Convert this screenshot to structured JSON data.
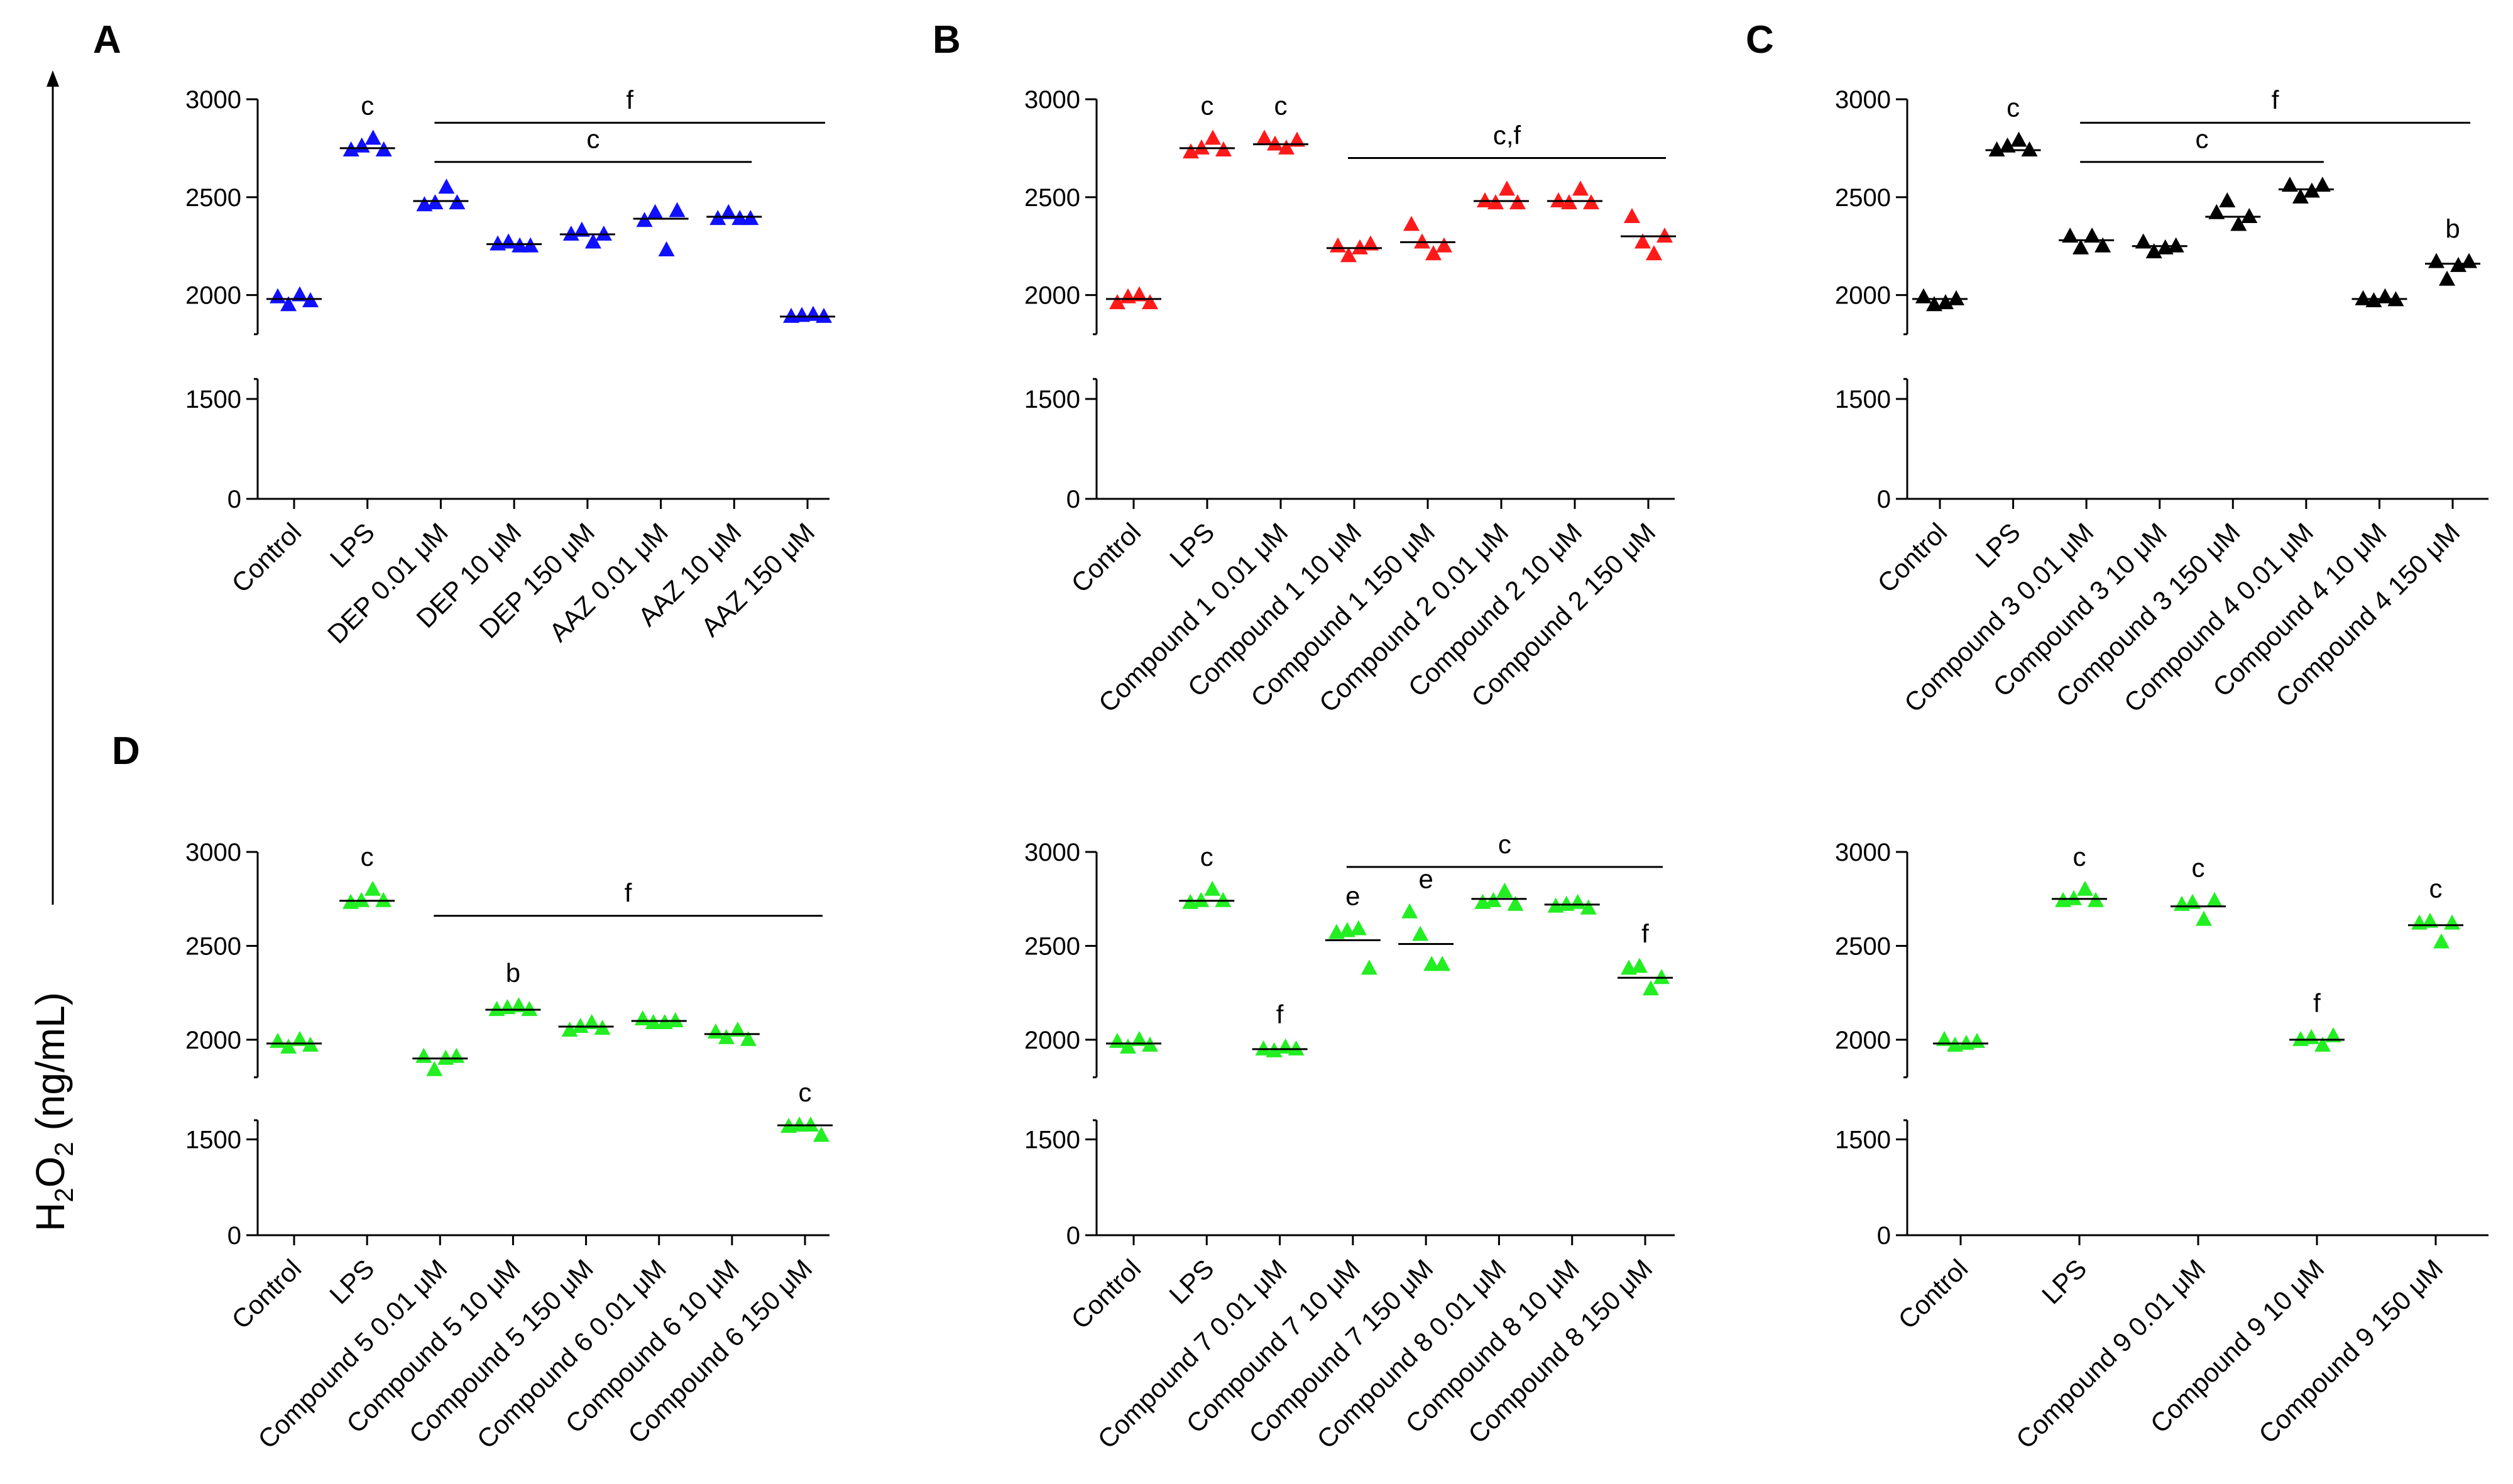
{
  "y_axis_label": {
    "main": "H",
    "sub": "2",
    "mid": "O",
    "sub2": "2",
    "rest": " (ng/mL)"
  },
  "chart_data": [
    {
      "panel": "A",
      "type": "scatter",
      "color": "#1010ff",
      "categories": [
        "Control",
        "LPS",
        "DEP 0.01 μM",
        "DEP 10 μM",
        "DEP 150 μM",
        "AAZ 0.01 μM",
        "AAZ 10 μM",
        "AAZ 150 μM"
      ],
      "yticks": [
        "3000",
        "2500",
        "2000",
        "1500",
        "0"
      ],
      "ylabel": "H2O2 (ng/mL)",
      "points": [
        [
          1990,
          1950,
          2000,
          1970
        ],
        [
          2740,
          2760,
          2800,
          2740
        ],
        [
          2460,
          2470,
          2550,
          2470
        ],
        [
          2260,
          2270,
          2250,
          2250
        ],
        [
          2310,
          2330,
          2270,
          2310
        ],
        [
          2380,
          2420,
          2230,
          2430
        ],
        [
          2390,
          2420,
          2390,
          2390
        ],
        [
          1890,
          1895,
          1900,
          1890
        ]
      ],
      "means": [
        1980,
        2750,
        2480,
        2260,
        2310,
        2390,
        2400,
        1890
      ],
      "annotations": [
        {
          "text": "c",
          "cat": 1
        }
      ],
      "brackets": [
        {
          "text": "f",
          "from": 2,
          "to": 7,
          "level": 2880
        },
        {
          "text": "c",
          "from": 2,
          "to": 6,
          "level": 2680
        }
      ]
    },
    {
      "panel": "B",
      "type": "scatter",
      "color": "#ff1a1a",
      "categories": [
        "Control",
        "LPS",
        "Compound 1 0.01 μM",
        "Compound 1 10 μM",
        "Compound 1 150 μM",
        "Compound 2 0.01 μM",
        "Compound 2 10 μM",
        "Compound 2 150 μM"
      ],
      "yticks": [
        "3000",
        "2500",
        "2000",
        "1500",
        "0"
      ],
      "ylabel": "H2O2 (ng/mL)",
      "points": [
        [
          1960,
          1990,
          2000,
          1960
        ],
        [
          2730,
          2750,
          2800,
          2740
        ],
        [
          2800,
          2770,
          2750,
          2790
        ],
        [
          2250,
          2200,
          2240,
          2260
        ],
        [
          2360,
          2270,
          2210,
          2250
        ],
        [
          2480,
          2470,
          2540,
          2470
        ],
        [
          2480,
          2470,
          2540,
          2470
        ],
        [
          2400,
          2270,
          2210,
          2300
        ]
      ],
      "means": [
        1980,
        2750,
        2770,
        2240,
        2270,
        2480,
        2480,
        2300
      ],
      "annotations": [
        {
          "text": "c",
          "cat": 1
        },
        {
          "text": "c",
          "cat": 2
        }
      ],
      "brackets": [
        {
          "text": "c,f",
          "from": 3,
          "to": 7,
          "level": 2700
        }
      ]
    },
    {
      "panel": "C",
      "type": "scatter",
      "color": "#000000",
      "categories": [
        "Control",
        "LPS",
        "Compound 3 0.01 μM",
        "Compound 3 10 μM",
        "Compound 3 150 μM",
        "Compound 4 0.01 μM",
        "Compound 4 10 μM",
        "Compound 4 150 μM"
      ],
      "yticks": [
        "3000",
        "2500",
        "2000",
        "1500",
        "0"
      ],
      "ylabel": "H2O2 (ng/mL)",
      "points": [
        [
          1990,
          1950,
          1960,
          1980
        ],
        [
          2740,
          2760,
          2790,
          2740
        ],
        [
          2300,
          2240,
          2300,
          2250
        ],
        [
          2270,
          2220,
          2240,
          2250
        ],
        [
          2420,
          2480,
          2360,
          2400
        ],
        [
          2560,
          2500,
          2530,
          2560
        ],
        [
          1980,
          1970,
          1990,
          1975
        ],
        [
          2170,
          2080,
          2150,
          2170
        ]
      ],
      "means": [
        1980,
        2740,
        2280,
        2250,
        2400,
        2540,
        1980,
        2160
      ],
      "annotations": [
        {
          "text": "c",
          "cat": 1
        },
        {
          "text": "b",
          "cat": 7
        }
      ],
      "brackets": [
        {
          "text": "f",
          "from": 2,
          "to": 7,
          "level": 2880
        },
        {
          "text": "c",
          "from": 2,
          "to": 5,
          "level": 2680
        }
      ]
    },
    {
      "panel": "D",
      "type": "scatter",
      "color": "#22ee22",
      "categories": [
        "Control",
        "LPS",
        "Compound 5 0.01 μM",
        "Compound 5 10 μM",
        "Compound 5 150 μM",
        "Compound 6 0.01 μM",
        "Compound 6 10 μM",
        "Compound 6 150 μM"
      ],
      "yticks": [
        "3000",
        "2500",
        "2000",
        "1500",
        "0"
      ],
      "ylabel": "H2O2 (ng/mL)",
      "points": [
        [
          1990,
          1960,
          2000,
          1970
        ],
        [
          2730,
          2740,
          2800,
          2740
        ],
        [
          1910,
          1840,
          1900,
          1910
        ],
        [
          2160,
          2170,
          2180,
          2160
        ],
        [
          2050,
          2070,
          2090,
          2060
        ],
        [
          2110,
          2090,
          2090,
          2100
        ],
        [
          2040,
          2010,
          2050,
          2000
        ],
        [
          1700,
          1720,
          1720,
          1560
        ]
      ],
      "means": [
        1980,
        2740,
        1900,
        2160,
        2070,
        2100,
        2030,
        1720
      ],
      "annotations": [
        {
          "text": "c",
          "cat": 1
        },
        {
          "text": "b",
          "cat": 3
        },
        {
          "text": "c",
          "cat": 7
        }
      ],
      "brackets": [
        {
          "text": "f",
          "from": 2,
          "to": 7,
          "level": 2660
        }
      ]
    },
    {
      "panel": "",
      "type": "scatter",
      "color": "#22ee22",
      "categories": [
        "Control",
        "LPS",
        "Compound 7 0.01 μM",
        "Compound 7 10 μM",
        "Compound 7 150 μM",
        "Compound 8 0.01 μM",
        "Compound 8 10 μM",
        "Compound 8 150 μM"
      ],
      "yticks": [
        "3000",
        "2500",
        "2000",
        "1500",
        "0"
      ],
      "ylabel": "H2O2 (ng/mL)",
      "points": [
        [
          1990,
          1960,
          2000,
          1970
        ],
        [
          2730,
          2740,
          2800,
          2740
        ],
        [
          1950,
          1940,
          1960,
          1950
        ],
        [
          2570,
          2580,
          2590,
          2380
        ],
        [
          2680,
          2560,
          2400,
          2400
        ],
        [
          2730,
          2740,
          2790,
          2720
        ],
        [
          2710,
          2720,
          2730,
          2700
        ],
        [
          2380,
          2390,
          2270,
          2330
        ]
      ],
      "means": [
        1980,
        2740,
        1950,
        2530,
        2510,
        2750,
        2720,
        2330
      ],
      "annotations": [
        {
          "text": "c",
          "cat": 1
        },
        {
          "text": "f",
          "cat": 2
        },
        {
          "text": "e",
          "cat": 3
        },
        {
          "text": "e",
          "cat": 4
        },
        {
          "text": "f",
          "cat": 7
        }
      ],
      "brackets": [
        {
          "text": "c",
          "from": 3,
          "to": 7,
          "level": 2920
        }
      ]
    },
    {
      "panel": "",
      "type": "scatter",
      "color": "#22ee22",
      "categories": [
        "Control",
        "LPS",
        "Compound 9 0.01 μM",
        "Compound 9 10 μM",
        "Compound 9 150 μM"
      ],
      "yticks": [
        "3000",
        "2500",
        "2000",
        "1500",
        "0"
      ],
      "ylabel": "H2O2 (ng/mL)",
      "points": [
        [
          2000,
          1970,
          1980,
          1990
        ],
        [
          2740,
          2750,
          2800,
          2740
        ],
        [
          2720,
          2730,
          2640,
          2740
        ],
        [
          2000,
          2010,
          1970,
          2020
        ],
        [
          2620,
          2630,
          2520,
          2620
        ]
      ],
      "means": [
        1980,
        2750,
        2710,
        2000,
        2610
      ],
      "annotations": [
        {
          "text": "c",
          "cat": 1
        },
        {
          "text": "c",
          "cat": 2
        },
        {
          "text": "f",
          "cat": 3
        },
        {
          "text": "c",
          "cat": 4
        }
      ]
    }
  ]
}
